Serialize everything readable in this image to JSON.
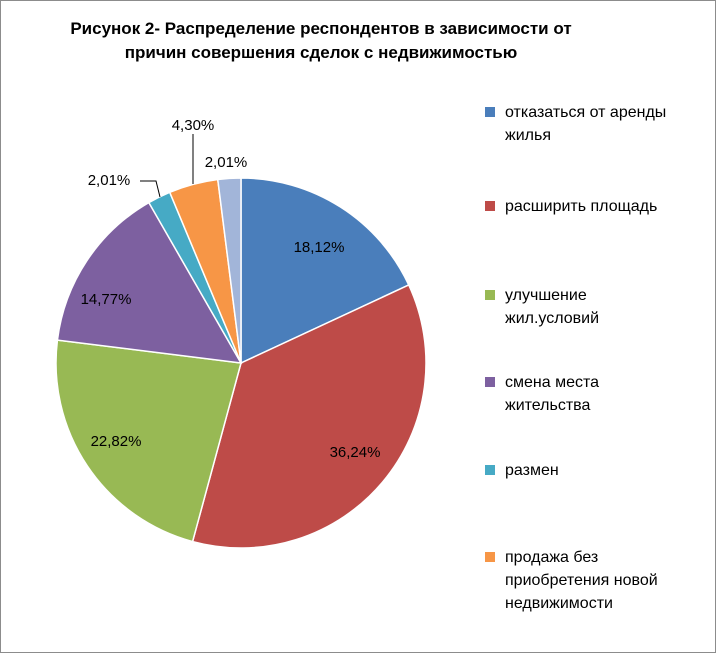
{
  "chart_data": {
    "type": "pie",
    "title": "Рисунок 2- Распределение респондентов в зависимости от причин совершения сделок с недвижимостью",
    "title_lines": [
      "Рисунок 2- Распределение респондентов в зависимости от",
      "причин совершения сделок с недвижимостью"
    ],
    "categories": [
      "отказаться от аренды жилья",
      "расширить площадь",
      "улучшение жил.условий",
      "смена места жительства",
      "размен",
      "продажа без приобретения новой недвижимости",
      ""
    ],
    "legend_entries": [
      "отказаться от аренды\nжилья",
      "расширить площадь",
      "улучшение\nжил.условий",
      "смена места\nжительства",
      "размен",
      "продажа без\nприобретения новой\nнедвижимости"
    ],
    "values": [
      18.12,
      36.24,
      22.82,
      14.77,
      2.01,
      4.3,
      2.01
    ],
    "labels": [
      "18,12%",
      "36,24%",
      "22,82%",
      "14,77%",
      "2,01%",
      "4,30%",
      "2,01%"
    ],
    "colors": [
      "#4a7ebb",
      "#be4b48",
      "#98b954",
      "#7d60a0",
      "#46aac5",
      "#f79646",
      "#a2b5d9"
    ],
    "legend_placement": "right"
  }
}
